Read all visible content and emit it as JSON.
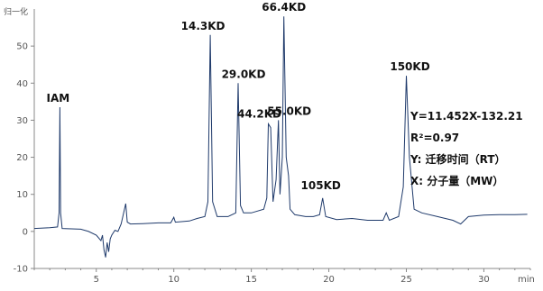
{
  "chart_data": {
    "type": "line",
    "ylabel": "归一化",
    "xunit": "min",
    "xlim": [
      1,
      33
    ],
    "ylim": [
      -10,
      60
    ],
    "xticks": [
      5,
      10,
      15,
      20,
      25,
      30
    ],
    "yticks": [
      -10,
      0,
      10,
      20,
      30,
      40,
      50
    ],
    "series": [
      {
        "points": [
          [
            1.0,
            0.8
          ],
          [
            2.0,
            1.0
          ],
          [
            2.5,
            1.2
          ],
          [
            2.6,
            5.0
          ],
          [
            2.65,
            33.5
          ],
          [
            2.7,
            5.0
          ],
          [
            2.8,
            0.8
          ],
          [
            4.0,
            0.6
          ],
          [
            4.5,
            0.0
          ],
          [
            5.0,
            -1.0
          ],
          [
            5.3,
            -2.5
          ],
          [
            5.4,
            -1.0
          ],
          [
            5.5,
            -5.0
          ],
          [
            5.6,
            -7.0
          ],
          [
            5.7,
            -3.0
          ],
          [
            5.8,
            -5.5
          ],
          [
            5.9,
            -2.0
          ],
          [
            6.0,
            -1.0
          ],
          [
            6.2,
            0.3
          ],
          [
            6.4,
            0.0
          ],
          [
            6.6,
            2.0
          ],
          [
            6.9,
            7.5
          ],
          [
            7.0,
            2.5
          ],
          [
            7.2,
            2.0
          ],
          [
            8.0,
            2.1
          ],
          [
            9.0,
            2.3
          ],
          [
            9.8,
            2.3
          ],
          [
            10.0,
            3.8
          ],
          [
            10.1,
            2.5
          ],
          [
            11.0,
            2.8
          ],
          [
            11.5,
            3.5
          ],
          [
            12.0,
            4.0
          ],
          [
            12.2,
            8.0
          ],
          [
            12.35,
            53.0
          ],
          [
            12.5,
            8.0
          ],
          [
            12.8,
            4.0
          ],
          [
            13.5,
            4.0
          ],
          [
            14.0,
            5.0
          ],
          [
            14.15,
            40.0
          ],
          [
            14.3,
            7.0
          ],
          [
            14.5,
            5.0
          ],
          [
            15.0,
            5.0
          ],
          [
            15.8,
            6.0
          ],
          [
            16.0,
            9.0
          ],
          [
            16.1,
            29.0
          ],
          [
            16.25,
            28.0
          ],
          [
            16.4,
            8.0
          ],
          [
            16.6,
            14.0
          ],
          [
            16.75,
            30.0
          ],
          [
            16.85,
            10.0
          ],
          [
            17.0,
            20.0
          ],
          [
            17.1,
            58.0
          ],
          [
            17.25,
            20.0
          ],
          [
            17.4,
            15.0
          ],
          [
            17.5,
            6.0
          ],
          [
            17.8,
            4.5
          ],
          [
            18.5,
            4.0
          ],
          [
            19.0,
            4.0
          ],
          [
            19.4,
            4.5
          ],
          [
            19.6,
            9.0
          ],
          [
            19.8,
            4.0
          ],
          [
            20.5,
            3.2
          ],
          [
            21.5,
            3.5
          ],
          [
            22.5,
            3.0
          ],
          [
            23.5,
            3.0
          ],
          [
            23.7,
            5.0
          ],
          [
            23.9,
            3.0
          ],
          [
            24.5,
            4.0
          ],
          [
            24.8,
            12.0
          ],
          [
            25.0,
            42.0
          ],
          [
            25.2,
            20.0
          ],
          [
            25.5,
            6.0
          ],
          [
            26.0,
            5.0
          ],
          [
            27.0,
            4.0
          ],
          [
            28.0,
            3.0
          ],
          [
            28.5,
            2.0
          ],
          [
            29.0,
            4.0
          ],
          [
            30.0,
            4.4
          ],
          [
            31.0,
            4.5
          ],
          [
            32.0,
            4.5
          ],
          [
            32.8,
            4.6
          ]
        ]
      }
    ],
    "annotations": [
      {
        "text": "IAM",
        "x": 2.65,
        "y": 33.5
      },
      {
        "text": "14.3KD",
        "x": 12.35,
        "y": 53.0
      },
      {
        "text": "29.0KD",
        "x": 14.15,
        "y": 40.0
      },
      {
        "text": "44.2KD",
        "x": 16.1,
        "y": 29.0
      },
      {
        "text": "55.0KD",
        "x": 16.75,
        "y": 30.0
      },
      {
        "text": "66.4KD",
        "x": 17.1,
        "y": 58.0
      },
      {
        "text": "105KD",
        "x": 19.6,
        "y": 9.0
      },
      {
        "text": "150KD",
        "x": 25.0,
        "y": 42.0
      }
    ],
    "equation": {
      "line1": "Y=11.452X-132.21",
      "line2": "R²=0.97",
      "line3": "Y:  迁移时间（RT）",
      "line4": "X:  分子量（MW）"
    },
    "colors": {
      "line": "#1f3a6b",
      "axis": "#888888",
      "grid": "none"
    }
  }
}
